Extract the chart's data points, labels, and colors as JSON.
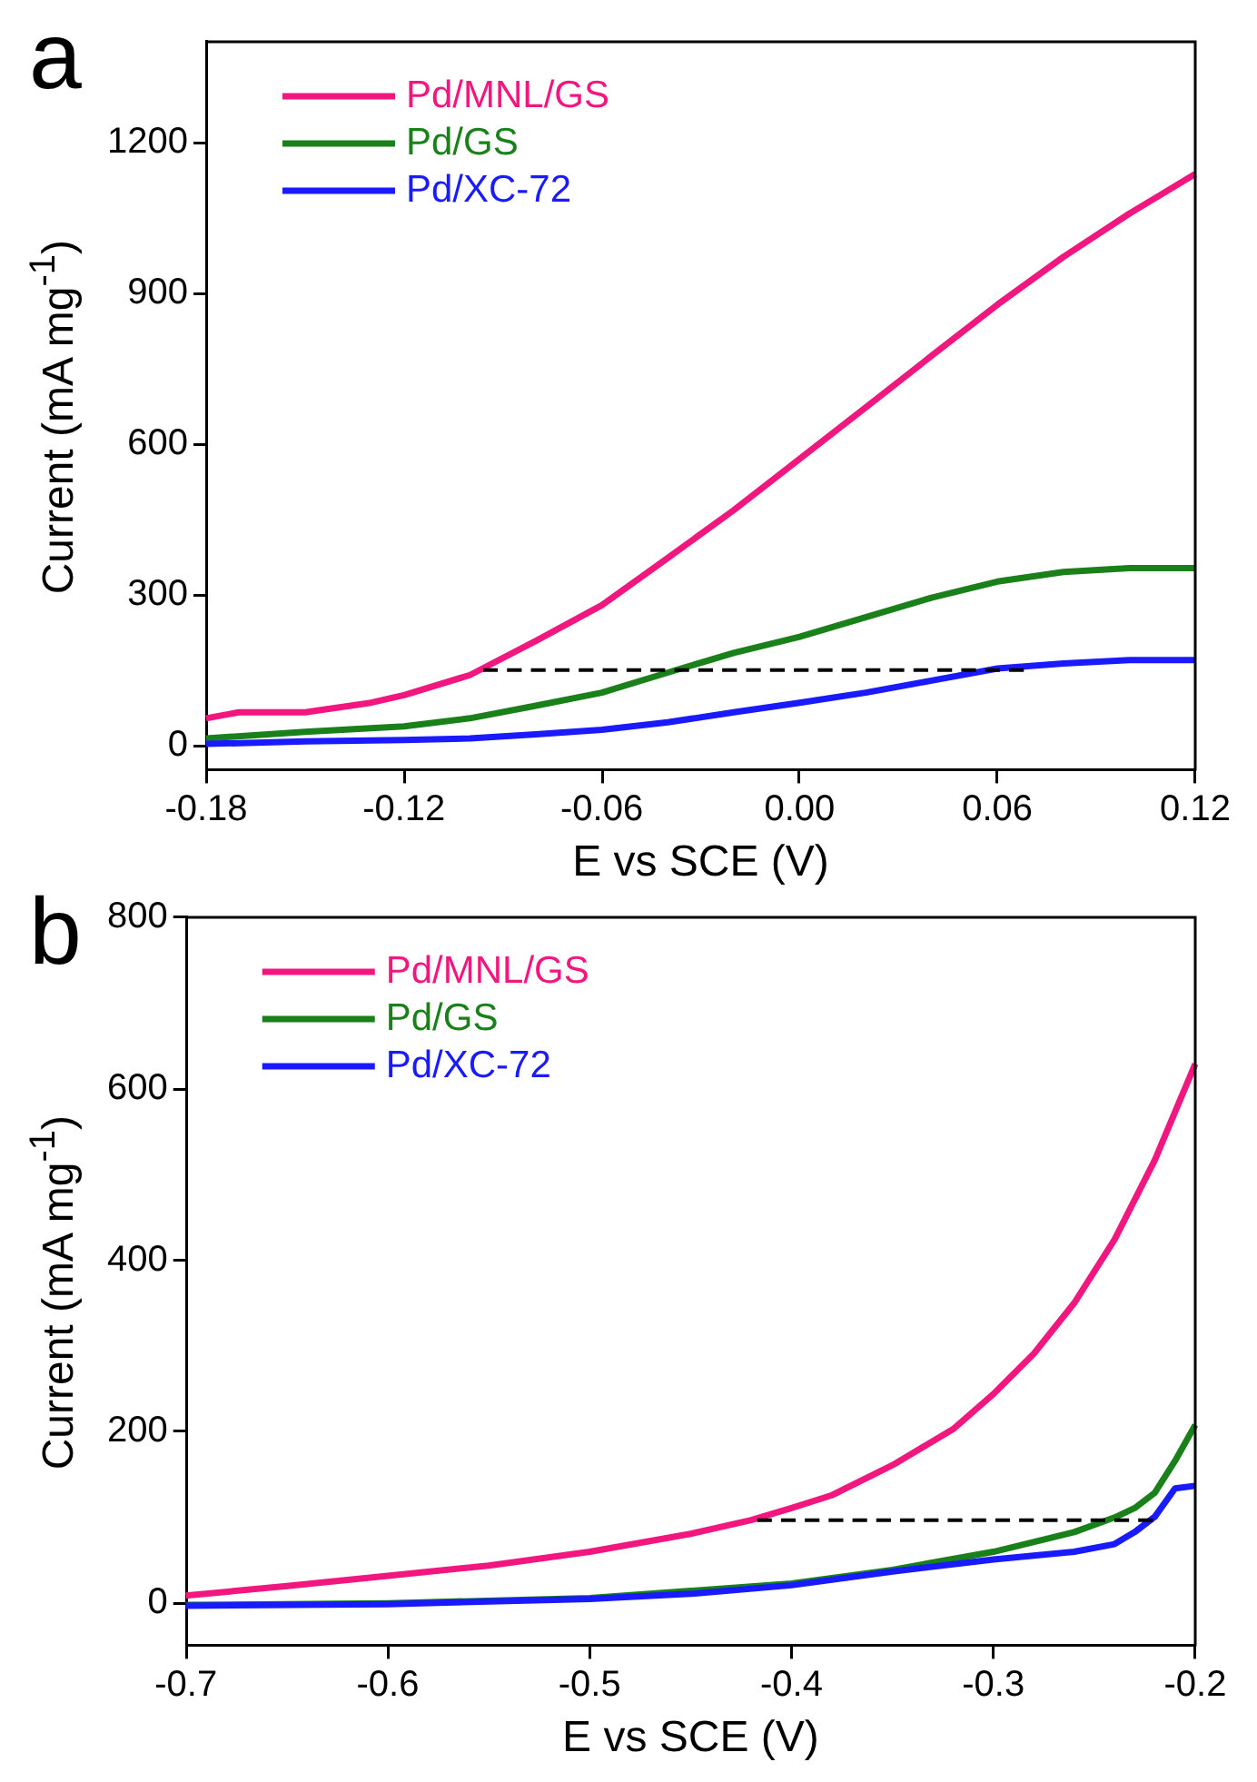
{
  "chart_data": [
    {
      "type": "line",
      "annotations": [
        "a"
      ],
      "xlabel": "E vs SCE (V)",
      "ylabel": "Current (mA mg$^{-1}$)",
      "xlim": [
        -0.18,
        0.12
      ],
      "xticks": [
        -0.18,
        -0.12,
        -0.06,
        {
          "value": 0,
          "label": "0.00"
        },
        0.06,
        0.12
      ],
      "ylim": [
        -50,
        1400
      ],
      "yticks": [
        0,
        300,
        600,
        900,
        1200
      ],
      "grid": false,
      "legend": "top left",
      "marker": "none",
      "series": [
        {
          "name": "Pd/MNL/GS",
          "color": "#f2177f",
          "x": [
            -0.18,
            -0.17,
            -0.15,
            -0.13,
            -0.12,
            -0.1,
            -0.08,
            -0.06,
            -0.04,
            -0.02,
            0,
            0.02,
            0.04,
            0.06,
            0.08,
            0.1,
            0.12
          ],
          "values": [
            54,
            66,
            66,
            85,
            100,
            140,
            208,
            279,
            373,
            468,
            570,
            672,
            775,
            877,
            972,
            1058,
            1137
          ]
        },
        {
          "name": "Pd/GS",
          "color": "#1a801a",
          "x": [
            -0.18,
            -0.15,
            -0.12,
            -0.1,
            -0.08,
            -0.06,
            -0.04,
            -0.02,
            0,
            0.02,
            0.04,
            0.06,
            0.08,
            0.1,
            0.12
          ],
          "values": [
            14,
            27,
            38,
            54,
            79,
            105,
            145,
            184,
            216,
            255,
            294,
            326,
            345,
            353,
            353
          ]
        },
        {
          "name": "Pd/XC-72",
          "color": "#1a1aff",
          "x": [
            -0.18,
            -0.15,
            -0.12,
            -0.1,
            -0.08,
            -0.06,
            -0.04,
            -0.02,
            0,
            0.02,
            0.04,
            0.06,
            0.08,
            0.1,
            0.12
          ],
          "values": [
            3,
            8,
            11,
            14,
            22,
            31,
            46,
            66,
            85,
            105,
            129,
            153,
            163,
            170,
            170
          ]
        },
        {
          "color": "#000000",
          "line_style": "dashed",
          "x": [
            -0.096,
            0.068
          ],
          "values": [
            150,
            150
          ]
        }
      ]
    },
    {
      "type": "line",
      "annotations": [
        "b"
      ],
      "xlabel": "E vs SCE (V)",
      "ylabel": "Current (mA mg$^{-1}$)",
      "xlim": [
        -0.7,
        -0.2
      ],
      "xticks": [
        -0.7,
        -0.6,
        -0.5,
        -0.4,
        -0.3,
        -0.2
      ],
      "ylim": [
        -50,
        800
      ],
      "yticks": [
        0,
        200,
        400,
        600,
        800
      ],
      "grid": false,
      "legend": "top left",
      "marker": "none",
      "series": [
        {
          "name": "Pd/MNL/GS",
          "color": "#f2177f",
          "x": [
            -0.7,
            -0.65,
            -0.6,
            -0.55,
            -0.5,
            -0.45,
            -0.42,
            -0.4,
            -0.38,
            -0.35,
            -0.32,
            -0.3,
            -0.28,
            -0.26,
            -0.24,
            -0.22,
            -0.2
          ],
          "values": [
            9,
            20,
            32,
            44,
            60,
            81,
            97,
            111,
            126,
            161,
            203,
            244,
            291,
            350,
            424,
            517,
            629
          ]
        },
        {
          "name": "Pd/GS",
          "color": "#1a801a",
          "x": [
            -0.7,
            -0.6,
            -0.5,
            -0.4,
            -0.35,
            -0.3,
            -0.26,
            -0.24,
            -0.23,
            -0.22,
            -0.21,
            -0.2
          ],
          "values": [
            -2,
            0,
            6,
            23,
            39,
            60,
            83,
            100,
            111,
            129,
            166,
            208
          ]
        },
        {
          "name": "Pd/XC-72",
          "color": "#1a1aff",
          "x": [
            -0.7,
            -0.6,
            -0.5,
            -0.45,
            -0.4,
            -0.35,
            -0.3,
            -0.26,
            -0.24,
            -0.23,
            -0.22,
            -0.21,
            -0.2
          ],
          "values": [
            -3,
            -1,
            5,
            11,
            21,
            37,
            51,
            60,
            69,
            83,
            101,
            134,
            137
          ]
        },
        {
          "color": "#000000",
          "line_style": "dashed",
          "x": [
            -0.417,
            -0.221
          ],
          "values": [
            97,
            97
          ]
        }
      ]
    }
  ]
}
